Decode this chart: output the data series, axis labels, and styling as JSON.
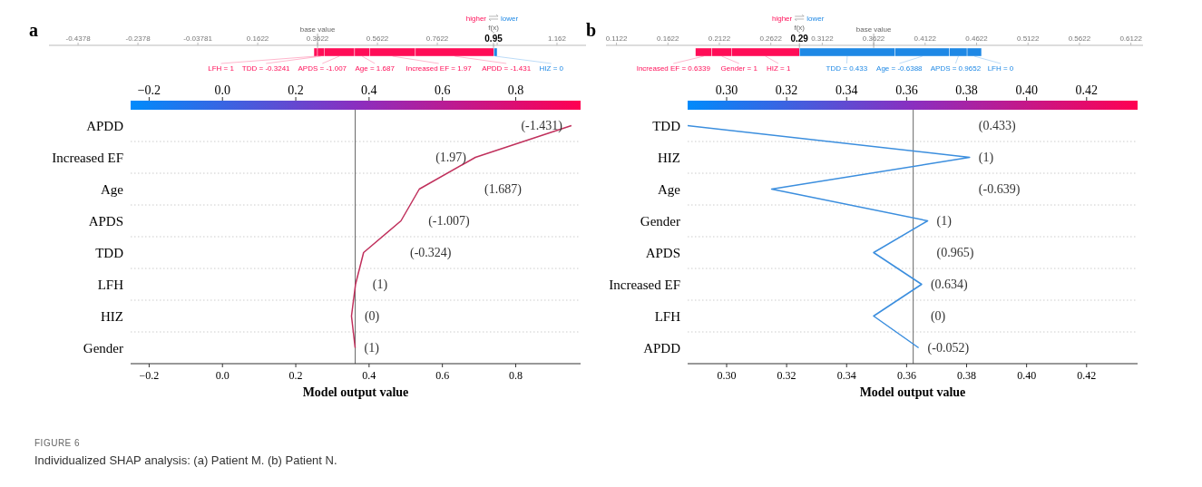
{
  "chart_data": [
    {
      "type": "bar",
      "title": "a",
      "orientation": "horizontal",
      "categories": [
        null
      ],
      "legend": "top right",
      "xlim": [
        -0.535,
        1.259
      ],
      "xticks": [
        -0.4378,
        -0.2378,
        -0.03781,
        0.1622,
        0.3622,
        0.5622,
        0.7622,
        {
          "value": 0.9622,
          "label": null
        },
        1.162
      ],
      "series": [
        {
          "name": "LFH = 1",
          "color": "#ff0d57",
          "values": [
            0.012
          ],
          "base": [
            0.35
          ]
        },
        {
          "name": "TDD = -0.3241",
          "color": "#ff0d57",
          "values": [
            0.022
          ],
          "base": [
            0.362
          ]
        },
        {
          "name": "APDS = -1.007",
          "color": "#ff0d57",
          "values": [
            0.102
          ],
          "base": [
            0.384
          ]
        },
        {
          "name": "Age = 1.687",
          "color": "#ff0d57",
          "values": [
            0.05
          ],
          "base": [
            0.486
          ]
        },
        {
          "name": "Increased EF = 1.97",
          "color": "#ff0d57",
          "values": [
            0.153
          ],
          "base": [
            0.536
          ]
        },
        {
          "name": "APDD = -1.431",
          "color": "#ff0d57",
          "values": [
            0.262
          ],
          "base": [
            0.689
          ]
        },
        {
          "name": "HIZ = 0",
          "color": "#1e88e5",
          "values": [
            0.011
          ],
          "base": [
            0.951
          ]
        }
      ],
      "ref_lines": [
        {
          "axis": "x",
          "value": 0.3622,
          "label": "base value"
        },
        {
          "axis": "x",
          "value": 0.95,
          "label": "f(x)"
        }
      ],
      "annotations": [
        "0.95",
        "higher",
        "lower"
      ]
    },
    {
      "type": "line",
      "orientation": "horizontal",
      "xlabel": "Model output value",
      "xlim": [
        -0.2505,
        0.977
      ],
      "x2lim": [
        -0.2505,
        0.977
      ],
      "xticks": [
        {
          "value": -0.2,
          "label": "−0.2"
        },
        {
          "value": 0,
          "label": "0.0"
        },
        0.2,
        0.4,
        0.6,
        0.8
      ],
      "x2ticks": [
        {
          "value": -0.2,
          "label": "−0.2"
        },
        {
          "value": 0,
          "label": "0.0"
        },
        0.2,
        0.4,
        0.6,
        0.8
      ],
      "categories": [
        "APDD",
        "Increased EF",
        "Age",
        "APDS",
        "TDD",
        "LFH",
        "HIZ",
        "Gender"
      ],
      "grid": "y",
      "series": [
        {
          "color": "#c0305c",
          "values": [
            0.952,
            0.69,
            0.537,
            0.487,
            0.385,
            0.363,
            0.352,
            0.362
          ]
        }
      ],
      "annotations": [
        "(-1.431)",
        "(1.97)",
        "(1.687)",
        "(-1.007)",
        "(-0.324)",
        "(1)",
        "(0)",
        "(1)"
      ],
      "ref_lines": [
        {
          "axis": "x",
          "value": 0.3622,
          "color": "#666666"
        }
      ]
    },
    {
      "type": "bar",
      "title": "b",
      "orientation": "horizontal",
      "categories": [
        null
      ],
      "legend": "top left",
      "xlim": [
        0.102,
        0.624
      ],
      "xticks": [
        0.1122,
        0.1622,
        0.2122,
        0.2622,
        0.3122,
        0.3622,
        0.4122,
        0.4622,
        0.5122,
        0.5622,
        0.6122
      ],
      "series": [
        {
          "name": "Increased EF = 0.6339",
          "color": "#ff0d57",
          "values": [
            0.016
          ],
          "base": [
            0.189
          ]
        },
        {
          "name": "Gender = 1",
          "color": "#ff0d57",
          "values": [
            0.019
          ],
          "base": [
            0.205
          ]
        },
        {
          "name": "HIZ = 1",
          "color": "#ff0d57",
          "values": [
            0.066
          ],
          "base": [
            0.224
          ]
        },
        {
          "name": "TDD = 0.433",
          "color": "#1e88e5",
          "values": [
            0.093
          ],
          "base": [
            0.29
          ]
        },
        {
          "name": "Age = -0.6388",
          "color": "#1e88e5",
          "values": [
            0.053
          ],
          "base": [
            0.383
          ]
        },
        {
          "name": "APDS = 0.9652",
          "color": "#1e88e5",
          "values": [
            0.017
          ],
          "base": [
            0.436
          ]
        },
        {
          "name": "LFH = 0",
          "color": "#1e88e5",
          "values": [
            0.014
          ],
          "base": [
            0.453
          ]
        }
      ],
      "ref_lines": [
        {
          "axis": "x",
          "value": 0.3622,
          "label": "base value"
        },
        {
          "axis": "x",
          "value": 0.29,
          "label": "f(x)"
        }
      ],
      "annotations": [
        "0.29",
        "higher",
        "lower"
      ]
    },
    {
      "type": "line",
      "orientation": "horizontal",
      "xlabel": "Model output value",
      "xlim": [
        0.287,
        0.437
      ],
      "x2lim": [
        0.287,
        0.437
      ],
      "xticks": [
        {
          "value": 0.3,
          "label": "0.30"
        },
        0.32,
        0.34,
        0.36,
        0.38,
        {
          "value": 0.4,
          "label": "0.40"
        },
        0.42
      ],
      "x2ticks": [
        {
          "value": 0.3,
          "label": "0.30"
        },
        0.32,
        0.34,
        0.36,
        0.38,
        {
          "value": 0.4,
          "label": "0.40"
        },
        0.42
      ],
      "categories": [
        "TDD",
        "HIZ",
        "Age",
        "Gender",
        "APDS",
        "Increased EF",
        "LFH",
        "APDD"
      ],
      "grid": "y",
      "series": [
        {
          "color": "#3b8ede",
          "values": [
            0.287,
            0.381,
            0.315,
            0.367,
            0.349,
            0.365,
            0.349,
            0.364
          ]
        }
      ],
      "annotations": [
        "(0.433)",
        "(1)",
        "(-0.639)",
        "(1)",
        "(0.965)",
        "(0.634)",
        "(0)",
        "(-0.052)"
      ],
      "ref_lines": [
        {
          "axis": "x",
          "value": 0.3622,
          "color": "#666666"
        }
      ]
    },
    {
      "type": "other",
      "title": "FIGURE 6",
      "annotations": [
        "Individualized SHAP analysis: (a) Patient M. (b) Patient N."
      ]
    }
  ]
}
